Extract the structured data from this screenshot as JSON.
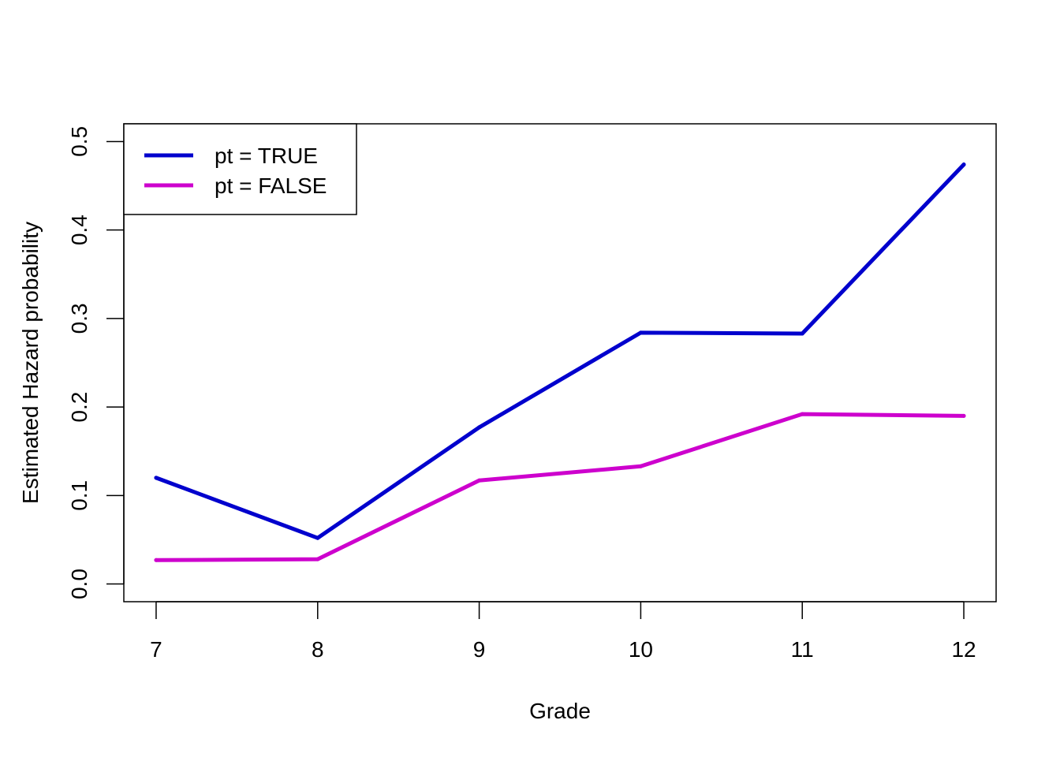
{
  "chart_data": {
    "type": "line",
    "title": "",
    "xlabel": "Grade",
    "ylabel": "Estimated Hazard probability",
    "x": [
      7,
      8,
      9,
      10,
      11,
      12
    ],
    "xticks": [
      "7",
      "8",
      "9",
      "10",
      "11",
      "12"
    ],
    "yticks": [
      "0.0",
      "0.1",
      "0.2",
      "0.3",
      "0.4",
      "0.5"
    ],
    "xlim": [
      6.8,
      12.2
    ],
    "ylim": [
      -0.02,
      0.52
    ],
    "grid": false,
    "legend_position": "top-left",
    "series": [
      {
        "name": "pt = TRUE",
        "color": "#0000CD",
        "values": [
          0.12,
          0.052,
          0.177,
          0.284,
          0.283,
          0.474
        ]
      },
      {
        "name": "pt = FALSE",
        "color": "#CD00CD",
        "values": [
          0.027,
          0.028,
          0.117,
          0.133,
          0.192,
          0.19
        ]
      }
    ]
  }
}
